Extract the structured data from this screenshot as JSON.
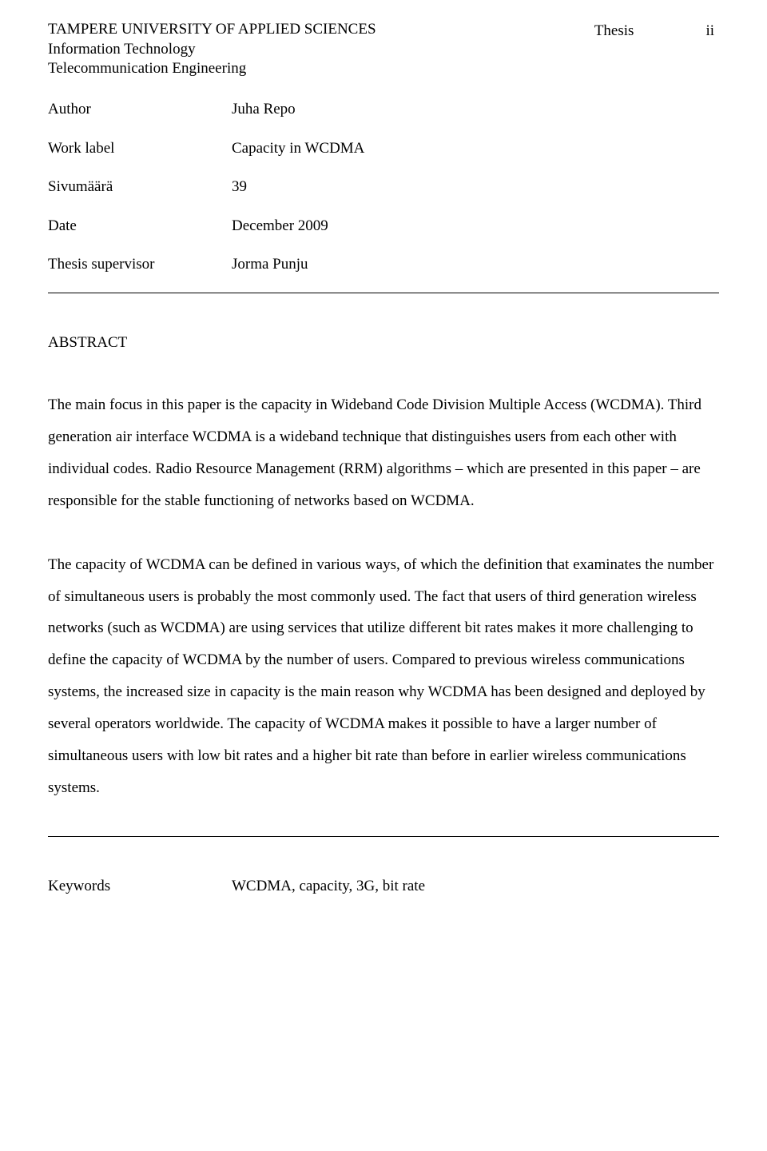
{
  "header": {
    "university": "TAMPERE UNIVERSITY OF APPLIED SCIENCES",
    "dept1": "Information Technology",
    "dept2": "Telecommunication Engineering",
    "doc_type": "Thesis",
    "page_num": "ii"
  },
  "meta": {
    "author_label": "Author",
    "author_value": "Juha Repo",
    "worklabel_label": "Work label",
    "worklabel_value": "Capacity in WCDMA",
    "pages_label": "Sivumäärä",
    "pages_value": "39",
    "date_label": "Date",
    "date_value": "December 2009",
    "supervisor_label": "Thesis supervisor",
    "supervisor_value": "Jorma Punju"
  },
  "abstract": {
    "title": "ABSTRACT",
    "p1": "The main focus in this paper is the capacity in Wideband Code Division Multiple Access (WCDMA). Third generation air interface WCDMA is a wideband technique that distinguishes users from each other with individual codes. Radio Resource Management (RRM) algorithms – which are presented in this paper – are responsible for the stable functioning of networks based on WCDMA.",
    "p2": "The capacity of WCDMA can be defined in various ways, of which the definition that examinates the number of simultaneous users is probably the most commonly used. The fact that users of third generation wireless networks (such as WCDMA) are using services that utilize different bit rates makes it more challenging to define the capacity of WCDMA by the number of users. Compared to previous wireless communications systems, the increased size in capacity is the main reason why WCDMA has been designed and deployed by several operators worldwide. The capacity of WCDMA makes it possible to have a larger number of simultaneous users with low bit rates and a higher bit rate than before in earlier wireless communications systems."
  },
  "keywords": {
    "label": "Keywords",
    "value": "WCDMA, capacity, 3G, bit rate"
  }
}
